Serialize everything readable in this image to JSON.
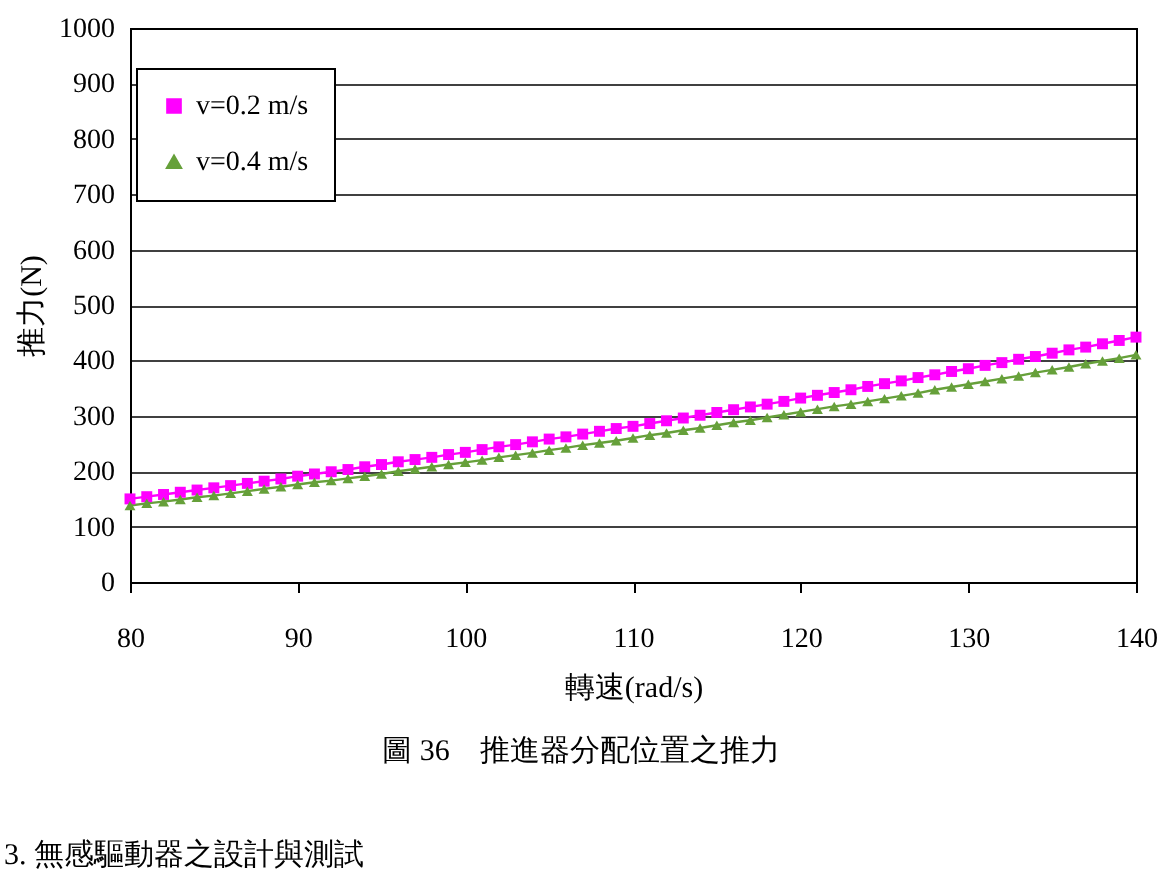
{
  "chart_data": {
    "type": "line",
    "xlabel": "轉速(rad/s)",
    "ylabel": "推力(N)",
    "x": [
      80,
      81,
      82,
      83,
      84,
      85,
      86,
      87,
      88,
      89,
      90,
      91,
      92,
      93,
      94,
      95,
      96,
      97,
      98,
      99,
      100,
      101,
      102,
      103,
      104,
      105,
      106,
      107,
      108,
      109,
      110,
      111,
      112,
      113,
      114,
      115,
      116,
      117,
      118,
      119,
      120,
      121,
      122,
      123,
      124,
      125,
      126,
      127,
      128,
      129,
      130,
      131,
      132,
      133,
      134,
      135,
      136,
      137,
      138,
      139,
      140
    ],
    "series": [
      {
        "name": "v=0.2 m/s",
        "color": "#ff00ff",
        "marker": "square",
        "values": [
          150,
          154,
          158,
          162,
          166,
          170,
          174,
          178,
          182,
          186,
          191,
          195,
          199,
          203,
          208,
          212,
          217,
          221,
          225,
          230,
          234,
          239,
          244,
          248,
          253,
          258,
          262,
          267,
          272,
          277,
          281,
          286,
          291,
          296,
          301,
          306,
          311,
          316,
          321,
          326,
          332,
          337,
          342,
          347,
          353,
          358,
          363,
          369,
          374,
          380,
          385,
          391,
          396,
          402,
          407,
          413,
          419,
          424,
          430,
          436,
          442
        ]
      },
      {
        "name": "v=0.4 m/s",
        "color": "#66a03a",
        "marker": "triangle",
        "values": [
          138,
          142,
          145,
          149,
          153,
          156,
          160,
          164,
          168,
          172,
          176,
          180,
          183,
          187,
          191,
          195,
          200,
          204,
          208,
          212,
          216,
          220,
          225,
          229,
          233,
          238,
          242,
          247,
          251,
          255,
          260,
          265,
          269,
          274,
          278,
          283,
          288,
          292,
          297,
          302,
          307,
          312,
          317,
          321,
          326,
          331,
          336,
          341,
          347,
          352,
          357,
          362,
          367,
          372,
          378,
          383,
          388,
          394,
          399,
          404,
          410
        ]
      }
    ],
    "xlim": [
      80,
      140
    ],
    "xticks": [
      80,
      90,
      100,
      110,
      120,
      130,
      140
    ],
    "ylim": [
      0,
      1000
    ],
    "yticks": [
      0,
      100,
      200,
      300,
      400,
      500,
      600,
      700,
      800,
      900,
      {
        "value": 1000,
        "label": "1000"
      }
    ],
    "grid": "y",
    "legend": "top left",
    "annotations": [
      "圖 36　推進器分配位置之推力",
      "3. 無感驅動器之設計與測試"
    ]
  }
}
